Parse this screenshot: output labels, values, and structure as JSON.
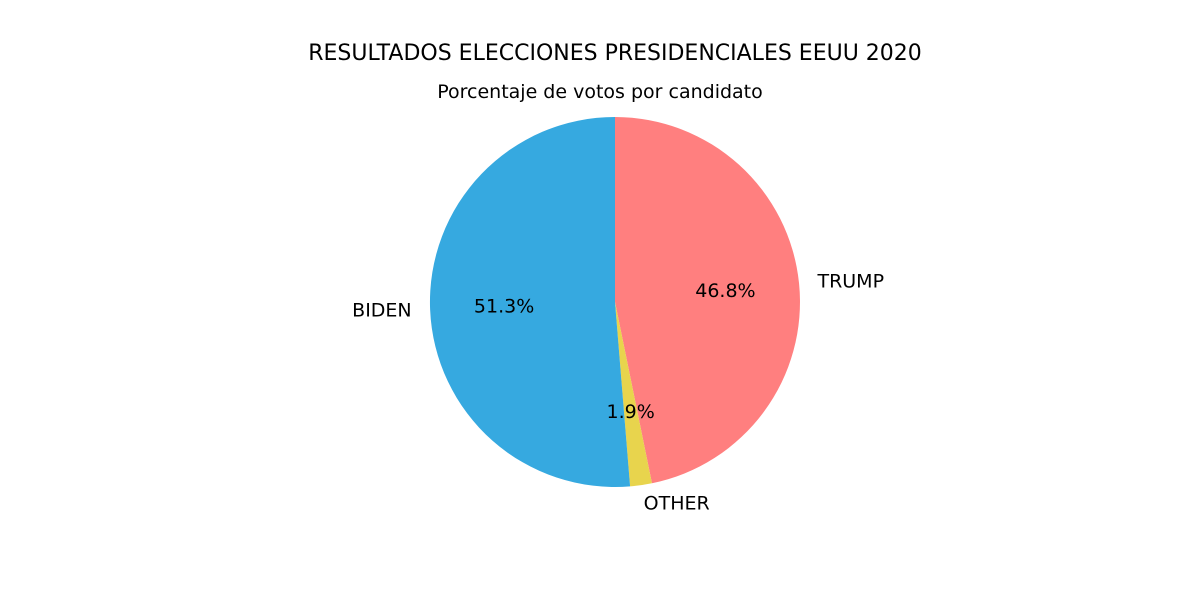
{
  "chart_data": {
    "type": "pie",
    "title": "RESULTADOS ELECCIONES PRESIDENCIALES EEUU 2020",
    "subtitle": "Porcentaje de votos por candidato",
    "start_angle_deg": 90,
    "direction": "clockwise",
    "slices": [
      {
        "label": "TRUMP",
        "value": 46.8,
        "pct_label": "46.8%",
        "color": "#FF7F7F"
      },
      {
        "label": "OTHER",
        "value": 1.9,
        "pct_label": "1.9%",
        "color": "#E8D44D"
      },
      {
        "label": "BIDEN",
        "value": 51.3,
        "pct_label": "51.3%",
        "color": "#36A9E0"
      }
    ]
  }
}
